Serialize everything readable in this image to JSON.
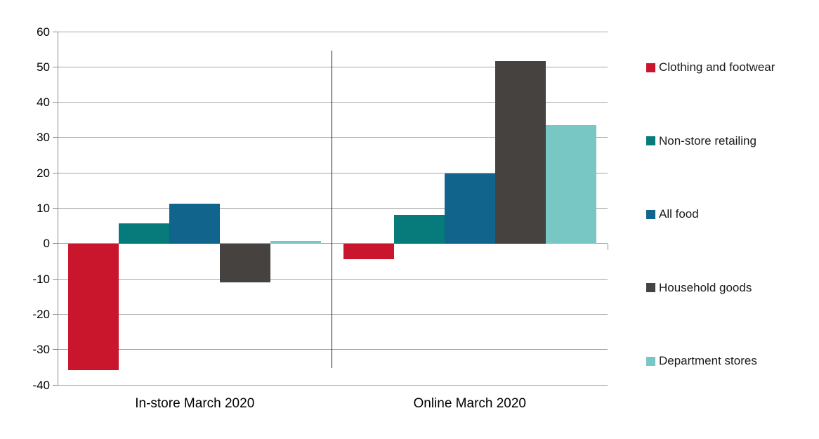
{
  "chart_data": {
    "type": "bar",
    "title": "",
    "xlabel": "",
    "ylabel": "",
    "categories": [
      "In-store March 2020",
      "Online March 2020"
    ],
    "series": [
      {
        "name": "Clothing and footwear",
        "color": "#c9162c",
        "values": [
          -35.9,
          -4.4
        ]
      },
      {
        "name": "Non-store retailing",
        "color": "#077a7b",
        "values": [
          5.7,
          8.1
        ]
      },
      {
        "name": "All food",
        "color": "#11648b",
        "values": [
          11.3,
          19.8
        ]
      },
      {
        "name": "Household goods",
        "color": "#464240",
        "values": [
          -10.9,
          51.7
        ]
      },
      {
        "name": "Department stores",
        "color": "#79c7c5",
        "values": [
          0.8,
          33.6
        ]
      }
    ],
    "ylim": [
      -40,
      60
    ],
    "yticks": [
      60,
      50,
      40,
      30,
      20,
      10,
      0,
      -10,
      -20,
      -30,
      -40
    ],
    "grid": "horizontal",
    "gridline_color": "#a6a6a6",
    "axis_color": "#8c8c8c",
    "divider_line": true,
    "legend_position": "right"
  }
}
